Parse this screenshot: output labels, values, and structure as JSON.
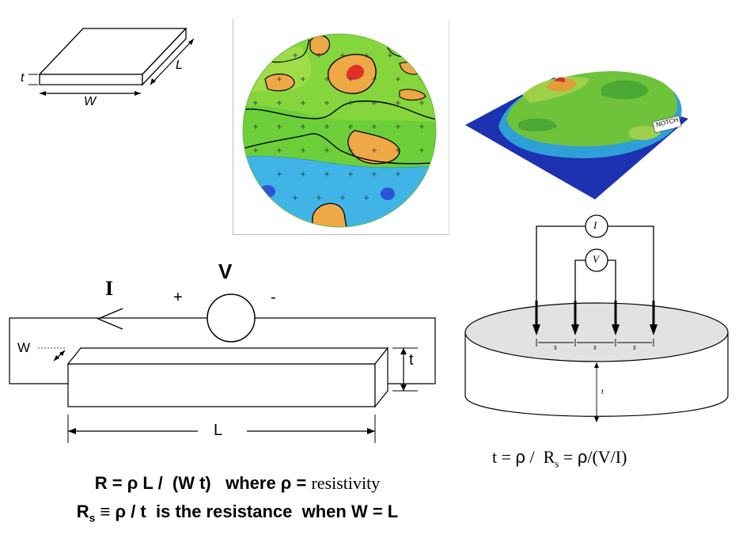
{
  "slab": {
    "t": "t",
    "W": "W",
    "L": "L"
  },
  "wafer_3d": {
    "notch": "NOTCH"
  },
  "bar_circuit": {
    "I": "I",
    "plus": "+",
    "V": "V",
    "minus": "-",
    "W": "W",
    "t": "t",
    "L": "L"
  },
  "probe": {
    "I": "I",
    "V": "V",
    "s1": "s",
    "s2": "s",
    "s3": "s",
    "t": "t"
  },
  "equations": {
    "line1_prefix": "R = ρ L /  (W t)   where ρ = ",
    "line1_word": "resistivity",
    "line2_R": "R",
    "line2_sub": "s",
    "line2_rest": " ≡ ρ / t  is the resistance  when W = L"
  },
  "formula_right": {
    "part1": "t = ",
    "rho1": "ρ",
    "part2": " /  R",
    "sub": "s",
    "part3": " = ",
    "rho2": "ρ",
    "part4": "/(V/I)"
  },
  "colors": {
    "contour_blue": "#2f9fe0",
    "contour_green": "#7fd33a",
    "contour_orange": "#f0a040",
    "contour_red": "#e02020"
  }
}
